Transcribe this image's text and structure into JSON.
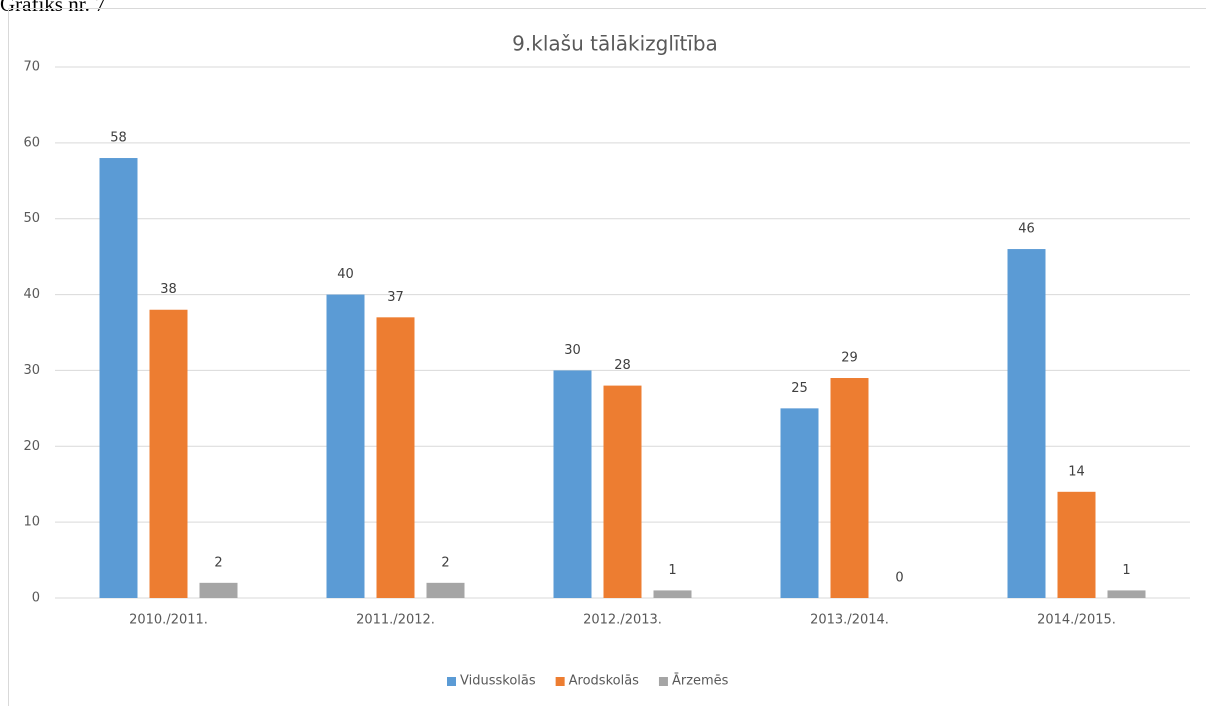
{
  "caption": "Grafiks nr. 7",
  "chart_data": {
    "type": "bar",
    "title": "9.klašu tālākizglītība",
    "categories": [
      "2010./2011.",
      "2011./2012.",
      "2012./2013.",
      "2013./2014.",
      "2014./2015."
    ],
    "series": [
      {
        "name": "Vidusskolās",
        "color": "#5b9bd5",
        "values": [
          58,
          40,
          30,
          25,
          46
        ]
      },
      {
        "name": "Arodskolās",
        "color": "#ed7d31",
        "values": [
          38,
          37,
          28,
          29,
          14
        ]
      },
      {
        "name": "Ārzemēs",
        "color": "#a5a5a5",
        "values": [
          2,
          2,
          1,
          0,
          1
        ]
      }
    ],
    "ylim": [
      0,
      70
    ],
    "yticks": [
      0,
      10,
      20,
      30,
      40,
      50,
      60,
      70
    ],
    "grid": true,
    "legend": "bottom"
  }
}
